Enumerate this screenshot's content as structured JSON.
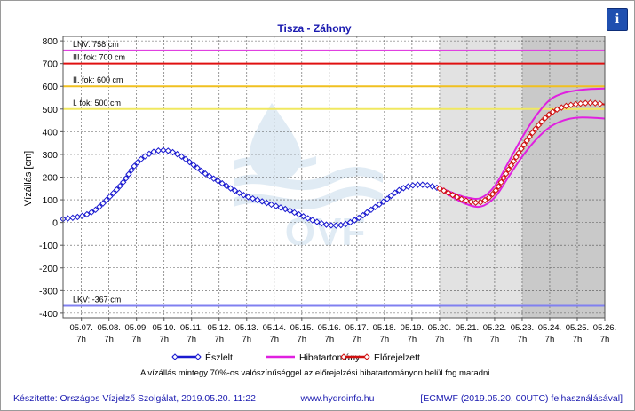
{
  "header": {
    "info_label": "i"
  },
  "chart_data": {
    "type": "line",
    "title": "Tisza - Záhony",
    "ylabel": "Vízállás [cm]",
    "ylim": [
      -420,
      820
    ],
    "yticks": [
      -400,
      -300,
      -200,
      -100,
      0,
      100,
      200,
      300,
      400,
      500,
      600,
      700,
      800
    ],
    "x_ticks": [
      {
        "date": "05.07.",
        "hour": "7h"
      },
      {
        "date": "05.08.",
        "hour": "7h"
      },
      {
        "date": "05.09.",
        "hour": "7h"
      },
      {
        "date": "05.10.",
        "hour": "7h"
      },
      {
        "date": "05.11.",
        "hour": "7h"
      },
      {
        "date": "05.12.",
        "hour": "7h"
      },
      {
        "date": "05.13.",
        "hour": "7h"
      },
      {
        "date": "05.14.",
        "hour": "7h"
      },
      {
        "date": "05.15.",
        "hour": "7h"
      },
      {
        "date": "05.16.",
        "hour": "7h"
      },
      {
        "date": "05.17.",
        "hour": "7h"
      },
      {
        "date": "05.18.",
        "hour": "7h"
      },
      {
        "date": "05.19.",
        "hour": "7h"
      },
      {
        "date": "05.20.",
        "hour": "7h"
      },
      {
        "date": "05.21.",
        "hour": "7h"
      },
      {
        "date": "05.22.",
        "hour": "7h"
      },
      {
        "date": "05.23.",
        "hour": "7h"
      },
      {
        "date": "05.24.",
        "hour": "7h"
      },
      {
        "date": "05.25.",
        "hour": "7h"
      },
      {
        "date": "05.26.",
        "hour": "7h"
      }
    ],
    "xlim": [
      "05.06. 15h",
      "05.26. 7h"
    ],
    "thresholds": [
      {
        "label": "LNV: 758 cm",
        "value": 758,
        "color": "#e040e0"
      },
      {
        "label": "III. fok: 700 cm",
        "value": 700,
        "color": "#e01010"
      },
      {
        "label": "II. fok: 600 cm",
        "value": 600,
        "color": "#f0c020"
      },
      {
        "label": "I. fok: 500 cm",
        "value": 500,
        "color": "#f0e860"
      },
      {
        "label": "LKV: -367 cm",
        "value": -367,
        "color": "#8080f0"
      }
    ],
    "shaded_regions": [
      {
        "from": "05.20. 7h",
        "to": "05.23. 7h",
        "color": "#e2e2e2"
      },
      {
        "from": "05.23. 7h",
        "to": "05.26. 7h",
        "color": "#c9c9c9"
      }
    ],
    "series": [
      {
        "name": "Észlelt",
        "color": "#1a1ad0",
        "points": [
          [
            "05.06. 15h",
            15
          ],
          [
            "05.07. 7h",
            28
          ],
          [
            "05.07. 19h",
            55
          ],
          [
            "05.08. 7h",
            110
          ],
          [
            "05.08. 19h",
            175
          ],
          [
            "05.09. 7h",
            260
          ],
          [
            "05.09. 19h",
            305
          ],
          [
            "05.10. 7h",
            318
          ],
          [
            "05.10. 19h",
            300
          ],
          [
            "05.11. 7h",
            260
          ],
          [
            "05.11. 19h",
            215
          ],
          [
            "05.12. 7h",
            180
          ],
          [
            "05.12. 19h",
            145
          ],
          [
            "05.13. 7h",
            115
          ],
          [
            "05.13. 19h",
            95
          ],
          [
            "05.14. 7h",
            75
          ],
          [
            "05.14. 19h",
            55
          ],
          [
            "05.15. 7h",
            30
          ],
          [
            "05.15. 19h",
            5
          ],
          [
            "05.16. 7h",
            -12
          ],
          [
            "05.16. 19h",
            -10
          ],
          [
            "05.17. 7h",
            15
          ],
          [
            "05.17. 19h",
            55
          ],
          [
            "05.18. 7h",
            95
          ],
          [
            "05.18. 19h",
            140
          ],
          [
            "05.19. 7h",
            163
          ],
          [
            "05.19. 19h",
            165
          ],
          [
            "05.20. 7h",
            150
          ]
        ]
      },
      {
        "name": "Hibatartomány",
        "color": "#e020e0",
        "upper": [
          [
            "05.20. 7h",
            155
          ],
          [
            "05.20. 19h",
            130
          ],
          [
            "05.21. 7h",
            110
          ],
          [
            "05.21. 19h",
            108
          ],
          [
            "05.22. 7h",
            160
          ],
          [
            "05.22. 19h",
            265
          ],
          [
            "05.23. 7h",
            375
          ],
          [
            "05.23. 19h",
            470
          ],
          [
            "05.24. 7h",
            540
          ],
          [
            "05.24. 19h",
            570
          ],
          [
            "05.25. 7h",
            582
          ],
          [
            "05.25. 19h",
            588
          ],
          [
            "05.26. 7h",
            590
          ]
        ],
        "lower": [
          [
            "05.20. 7h",
            145
          ],
          [
            "05.20. 19h",
            110
          ],
          [
            "05.21. 7h",
            80
          ],
          [
            "05.21. 19h",
            70
          ],
          [
            "05.22. 7h",
            110
          ],
          [
            "05.22. 19h",
            200
          ],
          [
            "05.23. 7h",
            290
          ],
          [
            "05.23. 19h",
            365
          ],
          [
            "05.24. 7h",
            420
          ],
          [
            "05.24. 19h",
            450
          ],
          [
            "05.25. 7h",
            462
          ],
          [
            "05.25. 19h",
            462
          ],
          [
            "05.26. 7h",
            458
          ]
        ]
      },
      {
        "name": "Előrejelzett",
        "color": "#d01010",
        "points": [
          [
            "05.20. 7h",
            150
          ],
          [
            "05.20. 19h",
            120
          ],
          [
            "05.21. 7h",
            95
          ],
          [
            "05.21. 19h",
            90
          ],
          [
            "05.22. 7h",
            135
          ],
          [
            "05.22. 19h",
            232
          ],
          [
            "05.23. 7h",
            330
          ],
          [
            "05.23. 19h",
            415
          ],
          [
            "05.24. 7h",
            478
          ],
          [
            "05.24. 19h",
            510
          ],
          [
            "05.25. 7h",
            522
          ],
          [
            "05.25. 19h",
            527
          ],
          [
            "05.26. 7h",
            520
          ]
        ]
      }
    ],
    "legend": {
      "placement": "bottom-center"
    },
    "note": "A vízállás mintegy 70%-os valószínűséggel az előrejelzési hibatartományon belül fog maradni.",
    "grid": true
  },
  "footer": {
    "credit": "Készítette: Országos Vízjelző Szolgálat, 2019.05.20. 11:22",
    "website": "www.hydroinfo.hu",
    "model": "[ECMWF (2019.05.20. 00UTC) felhasználásával]"
  }
}
